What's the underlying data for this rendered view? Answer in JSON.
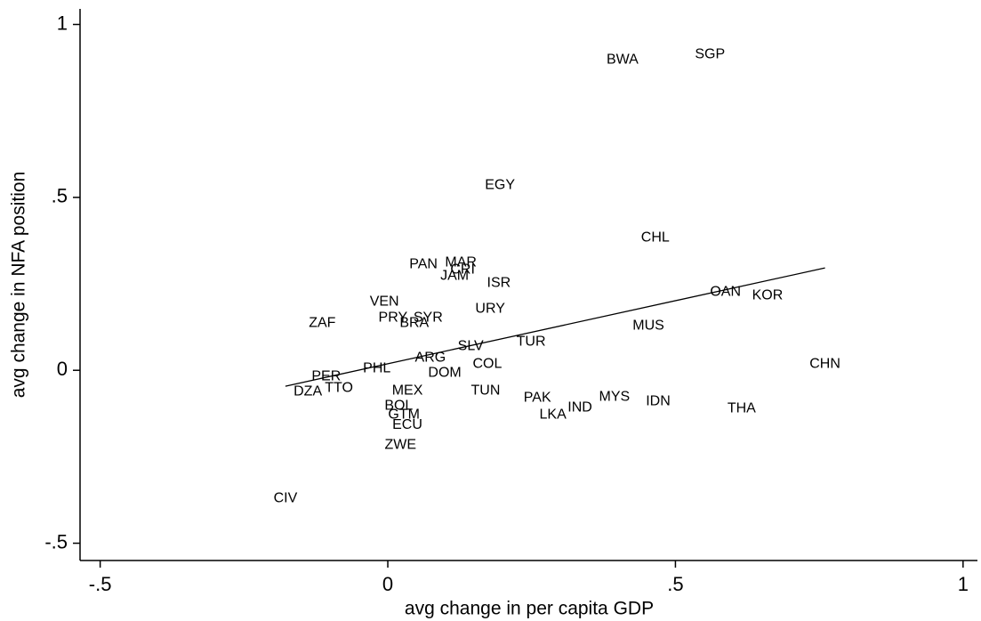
{
  "chart_data": {
    "type": "scatter",
    "x_label": "avg change in per capita GDP",
    "y_label": "avg change in NFA position",
    "labels": [
      "BWA",
      "SGP",
      "EGY",
      "CHL",
      "PAN",
      "MAR",
      "CRI",
      "JAM",
      "ISR",
      "OAN",
      "KOR",
      "VEN",
      "URY",
      "ZAF",
      "PRY",
      "SYR",
      "BRA",
      "MUS",
      "TUR",
      "SLV",
      "ARG",
      "CHN",
      "COL",
      "PHL",
      "DOM",
      "PER",
      "TTO",
      "DZA",
      "MEX",
      "TUN",
      "PAK",
      "MYS",
      "IDN",
      "IND",
      "THA",
      "BOL",
      "LKA",
      "GTM",
      "ECU",
      "ZWE",
      "CIV"
    ],
    "x": [
      0.408,
      0.56,
      0.195,
      0.465,
      0.062,
      0.127,
      0.13,
      0.116,
      0.193,
      0.587,
      0.66,
      -0.006,
      0.178,
      -0.114,
      0.009,
      0.07,
      0.046,
      0.453,
      0.249,
      0.144,
      0.074,
      0.76,
      0.173,
      -0.019,
      0.099,
      -0.107,
      -0.085,
      -0.139,
      0.034,
      0.17,
      0.26,
      0.394,
      0.47,
      0.334,
      0.615,
      0.019,
      0.287,
      0.028,
      0.034,
      0.022,
      -0.178
    ],
    "y": [
      0.897,
      0.913,
      0.535,
      0.383,
      0.306,
      0.311,
      0.29,
      0.272,
      0.252,
      0.226,
      0.216,
      0.198,
      0.177,
      0.136,
      0.152,
      0.152,
      0.136,
      0.129,
      0.082,
      0.069,
      0.036,
      0.018,
      0.018,
      0.005,
      -0.008,
      -0.018,
      -0.051,
      -0.062,
      -0.059,
      -0.059,
      -0.08,
      -0.077,
      -0.09,
      -0.108,
      -0.111,
      -0.103,
      -0.129,
      -0.129,
      -0.159,
      -0.216,
      -0.37
    ],
    "trend": {
      "x": [
        -0.178,
        0.76
      ],
      "y": [
        -0.046,
        0.296
      ]
    },
    "color": "#000000",
    "xlim": [
      -0.535,
      1.025
    ],
    "ylim": [
      -0.55,
      1.045
    ],
    "xticks": [
      {
        "value": -0.5,
        "label": "-.5"
      },
      0,
      {
        "value": 0.5,
        "label": ".5"
      },
      1
    ],
    "yticks": [
      {
        "value": -0.5,
        "label": "-.5"
      },
      0,
      {
        "value": 0.5,
        "label": ".5"
      },
      1
    ]
  }
}
